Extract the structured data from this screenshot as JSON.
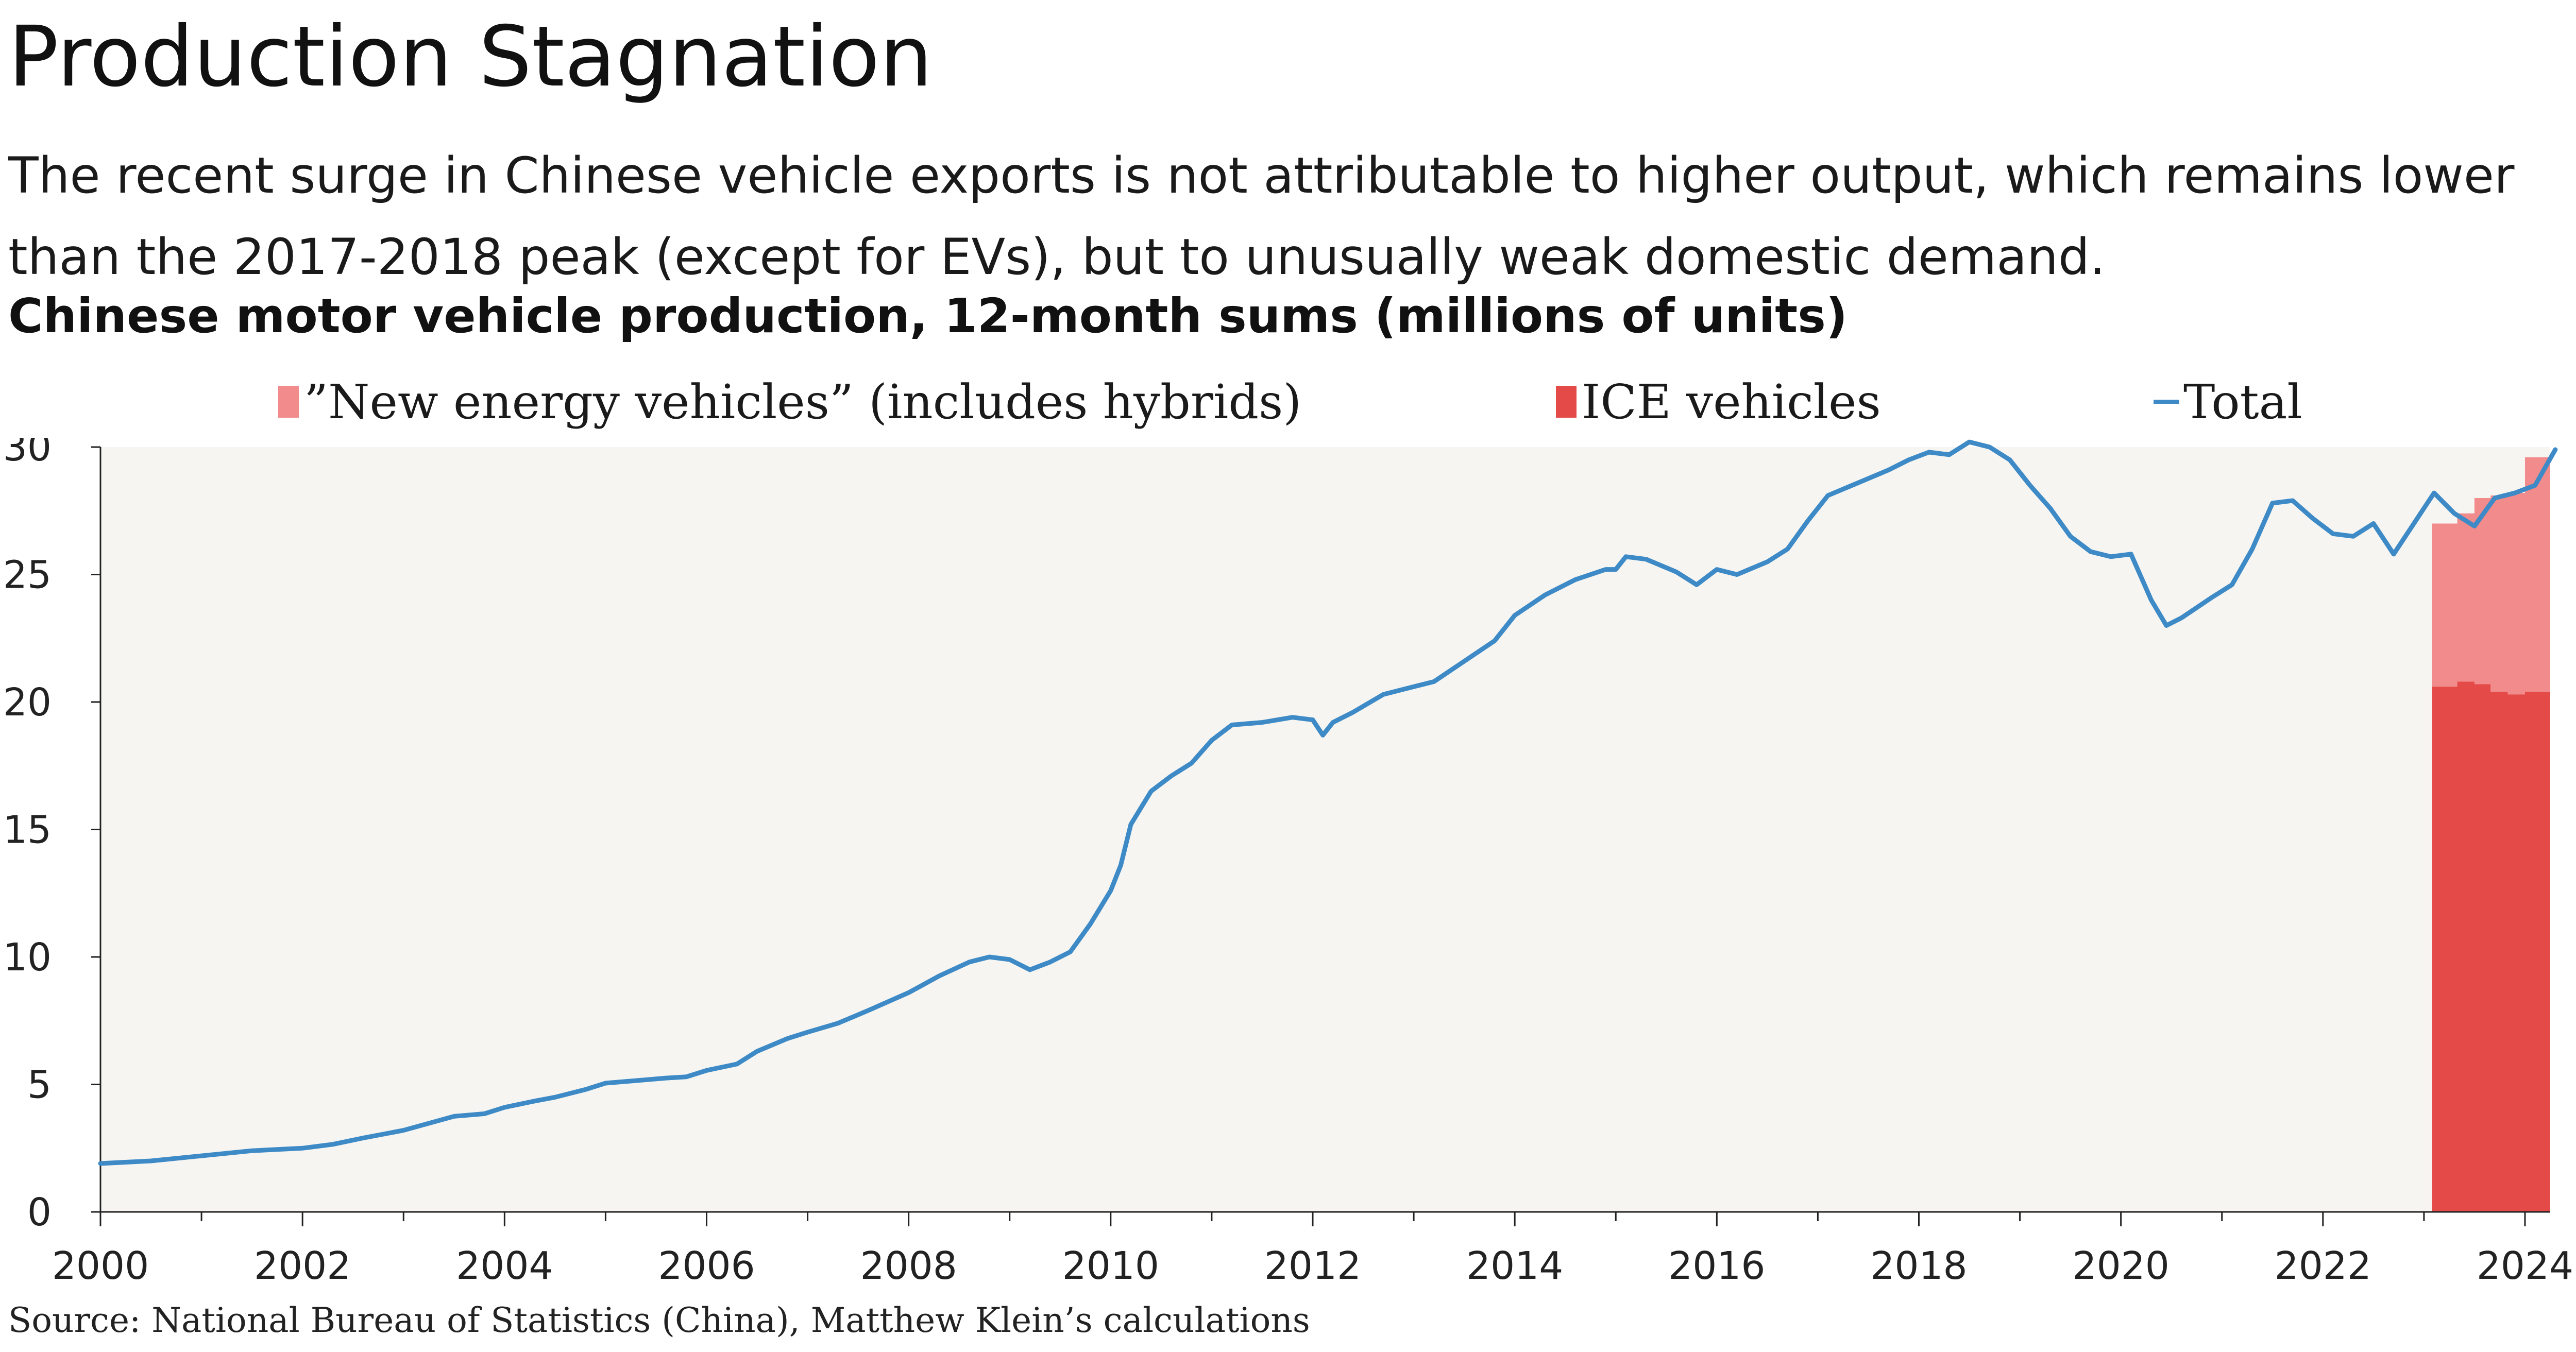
{
  "header": {
    "title": "Production Stagnation",
    "subtitle": "The recent surge in Chinese vehicle exports is not attributable to higher output, which remains lower than the 2017-2018 peak (except for EVs), but to unusually weak domestic demand.",
    "chart_title": "Chinese motor vehicle production, 12-month sums (millions of units)"
  },
  "legend": {
    "nev": "”New energy vehicles” (includes hybrids)",
    "ice": "ICE vehicles",
    "total": "Total"
  },
  "source": "Source: National Bureau of Statistics (China), Matthew Klein’s calculations",
  "colors": {
    "nev": "#f28b8b",
    "ice": "#e34a48",
    "total": "#3d8ac6",
    "plot_bg": "#f6f5f2"
  },
  "chart_data": {
    "type": "area",
    "xlim": [
      2000,
      2024.25
    ],
    "ylim": [
      0,
      30
    ],
    "xticks": [
      "2000",
      "2002",
      "2004",
      "2006",
      "2008",
      "2010",
      "2012",
      "2014",
      "2016",
      "2018",
      "2020",
      "2022",
      "2024"
    ],
    "yticks": [
      "0",
      "5",
      "10",
      "15",
      "20",
      "25",
      "30"
    ],
    "series": [
      {
        "name": "Total",
        "type": "line",
        "points": [
          [
            2000.0,
            1.9
          ],
          [
            2000.5,
            2.0
          ],
          [
            2001.0,
            2.2
          ],
          [
            2001.5,
            2.4
          ],
          [
            2002.0,
            2.5
          ],
          [
            2002.3,
            2.65
          ],
          [
            2002.6,
            2.9
          ],
          [
            2003.0,
            3.2
          ],
          [
            2003.5,
            3.75
          ],
          [
            2003.8,
            3.85
          ],
          [
            2004.0,
            4.1
          ],
          [
            2004.3,
            4.35
          ],
          [
            2004.5,
            4.5
          ],
          [
            2004.8,
            4.8
          ],
          [
            2005.0,
            5.05
          ],
          [
            2005.3,
            5.15
          ],
          [
            2005.6,
            5.25
          ],
          [
            2005.8,
            5.3
          ],
          [
            2006.0,
            5.55
          ],
          [
            2006.3,
            5.8
          ],
          [
            2006.5,
            6.3
          ],
          [
            2006.8,
            6.8
          ],
          [
            2007.0,
            7.05
          ],
          [
            2007.3,
            7.4
          ],
          [
            2007.6,
            7.9
          ],
          [
            2008.0,
            8.6
          ],
          [
            2008.3,
            9.25
          ],
          [
            2008.6,
            9.8
          ],
          [
            2008.8,
            10.0
          ],
          [
            2009.0,
            9.9
          ],
          [
            2009.2,
            9.5
          ],
          [
            2009.4,
            9.8
          ],
          [
            2009.6,
            10.2
          ],
          [
            2009.8,
            11.3
          ],
          [
            2010.0,
            12.6
          ],
          [
            2010.1,
            13.6
          ],
          [
            2010.2,
            15.2
          ],
          [
            2010.4,
            16.5
          ],
          [
            2010.6,
            17.1
          ],
          [
            2010.8,
            17.6
          ],
          [
            2011.0,
            18.5
          ],
          [
            2011.2,
            19.1
          ],
          [
            2011.5,
            19.2
          ],
          [
            2011.8,
            19.4
          ],
          [
            2012.0,
            19.3
          ],
          [
            2012.1,
            18.7
          ],
          [
            2012.2,
            19.2
          ],
          [
            2012.4,
            19.6
          ],
          [
            2012.7,
            20.3
          ],
          [
            2013.0,
            20.6
          ],
          [
            2013.2,
            20.8
          ],
          [
            2013.5,
            21.6
          ],
          [
            2013.8,
            22.4
          ],
          [
            2014.0,
            23.4
          ],
          [
            2014.3,
            24.2
          ],
          [
            2014.6,
            24.8
          ],
          [
            2014.9,
            25.2
          ],
          [
            2015.0,
            25.2
          ],
          [
            2015.1,
            25.7
          ],
          [
            2015.3,
            25.6
          ],
          [
            2015.6,
            25.1
          ],
          [
            2015.8,
            24.6
          ],
          [
            2016.0,
            25.2
          ],
          [
            2016.2,
            25.0
          ],
          [
            2016.5,
            25.5
          ],
          [
            2016.7,
            26.0
          ],
          [
            2016.9,
            27.1
          ],
          [
            2017.1,
            28.1
          ],
          [
            2017.4,
            28.6
          ],
          [
            2017.7,
            29.1
          ],
          [
            2017.9,
            29.5
          ],
          [
            2018.1,
            29.8
          ],
          [
            2018.3,
            29.7
          ],
          [
            2018.5,
            30.2
          ],
          [
            2018.7,
            30.0
          ],
          [
            2018.9,
            29.5
          ],
          [
            2019.1,
            28.5
          ],
          [
            2019.3,
            27.6
          ],
          [
            2019.5,
            26.5
          ],
          [
            2019.7,
            25.9
          ],
          [
            2019.9,
            25.7
          ],
          [
            2020.1,
            25.8
          ],
          [
            2020.3,
            24.0
          ],
          [
            2020.45,
            23.0
          ],
          [
            2020.6,
            23.3
          ],
          [
            2020.9,
            24.1
          ],
          [
            2021.1,
            24.6
          ],
          [
            2021.3,
            26.0
          ],
          [
            2021.5,
            27.8
          ],
          [
            2021.7,
            27.9
          ],
          [
            2021.9,
            27.2
          ],
          [
            2022.1,
            26.6
          ],
          [
            2022.3,
            26.5
          ],
          [
            2022.5,
            27.0
          ],
          [
            2022.7,
            25.8
          ],
          [
            2022.9,
            27.0
          ],
          [
            2023.1,
            28.2
          ],
          [
            2023.3,
            27.4
          ],
          [
            2023.5,
            26.9
          ],
          [
            2023.7,
            28.0
          ],
          [
            2023.9,
            28.2
          ],
          [
            2024.1,
            28.5
          ],
          [
            2024.3,
            29.9
          ]
        ]
      },
      {
        "name": "ICE vehicles",
        "type": "area",
        "points": [
          [
            2023.08,
            20.6
          ],
          [
            2023.33,
            20.8
          ],
          [
            2023.5,
            20.7
          ],
          [
            2023.66,
            20.4
          ],
          [
            2023.83,
            20.3
          ],
          [
            2024.0,
            20.4
          ],
          [
            2024.25,
            20.4
          ]
        ]
      },
      {
        "name": "”New energy vehicles” (includes hybrids)",
        "type": "area",
        "points": [
          [
            2023.08,
            6.4
          ],
          [
            2023.33,
            6.6
          ],
          [
            2023.5,
            7.3
          ],
          [
            2023.66,
            7.7
          ],
          [
            2023.83,
            7.9
          ],
          [
            2024.0,
            9.2
          ],
          [
            2024.25,
            9.5
          ]
        ]
      }
    ]
  }
}
